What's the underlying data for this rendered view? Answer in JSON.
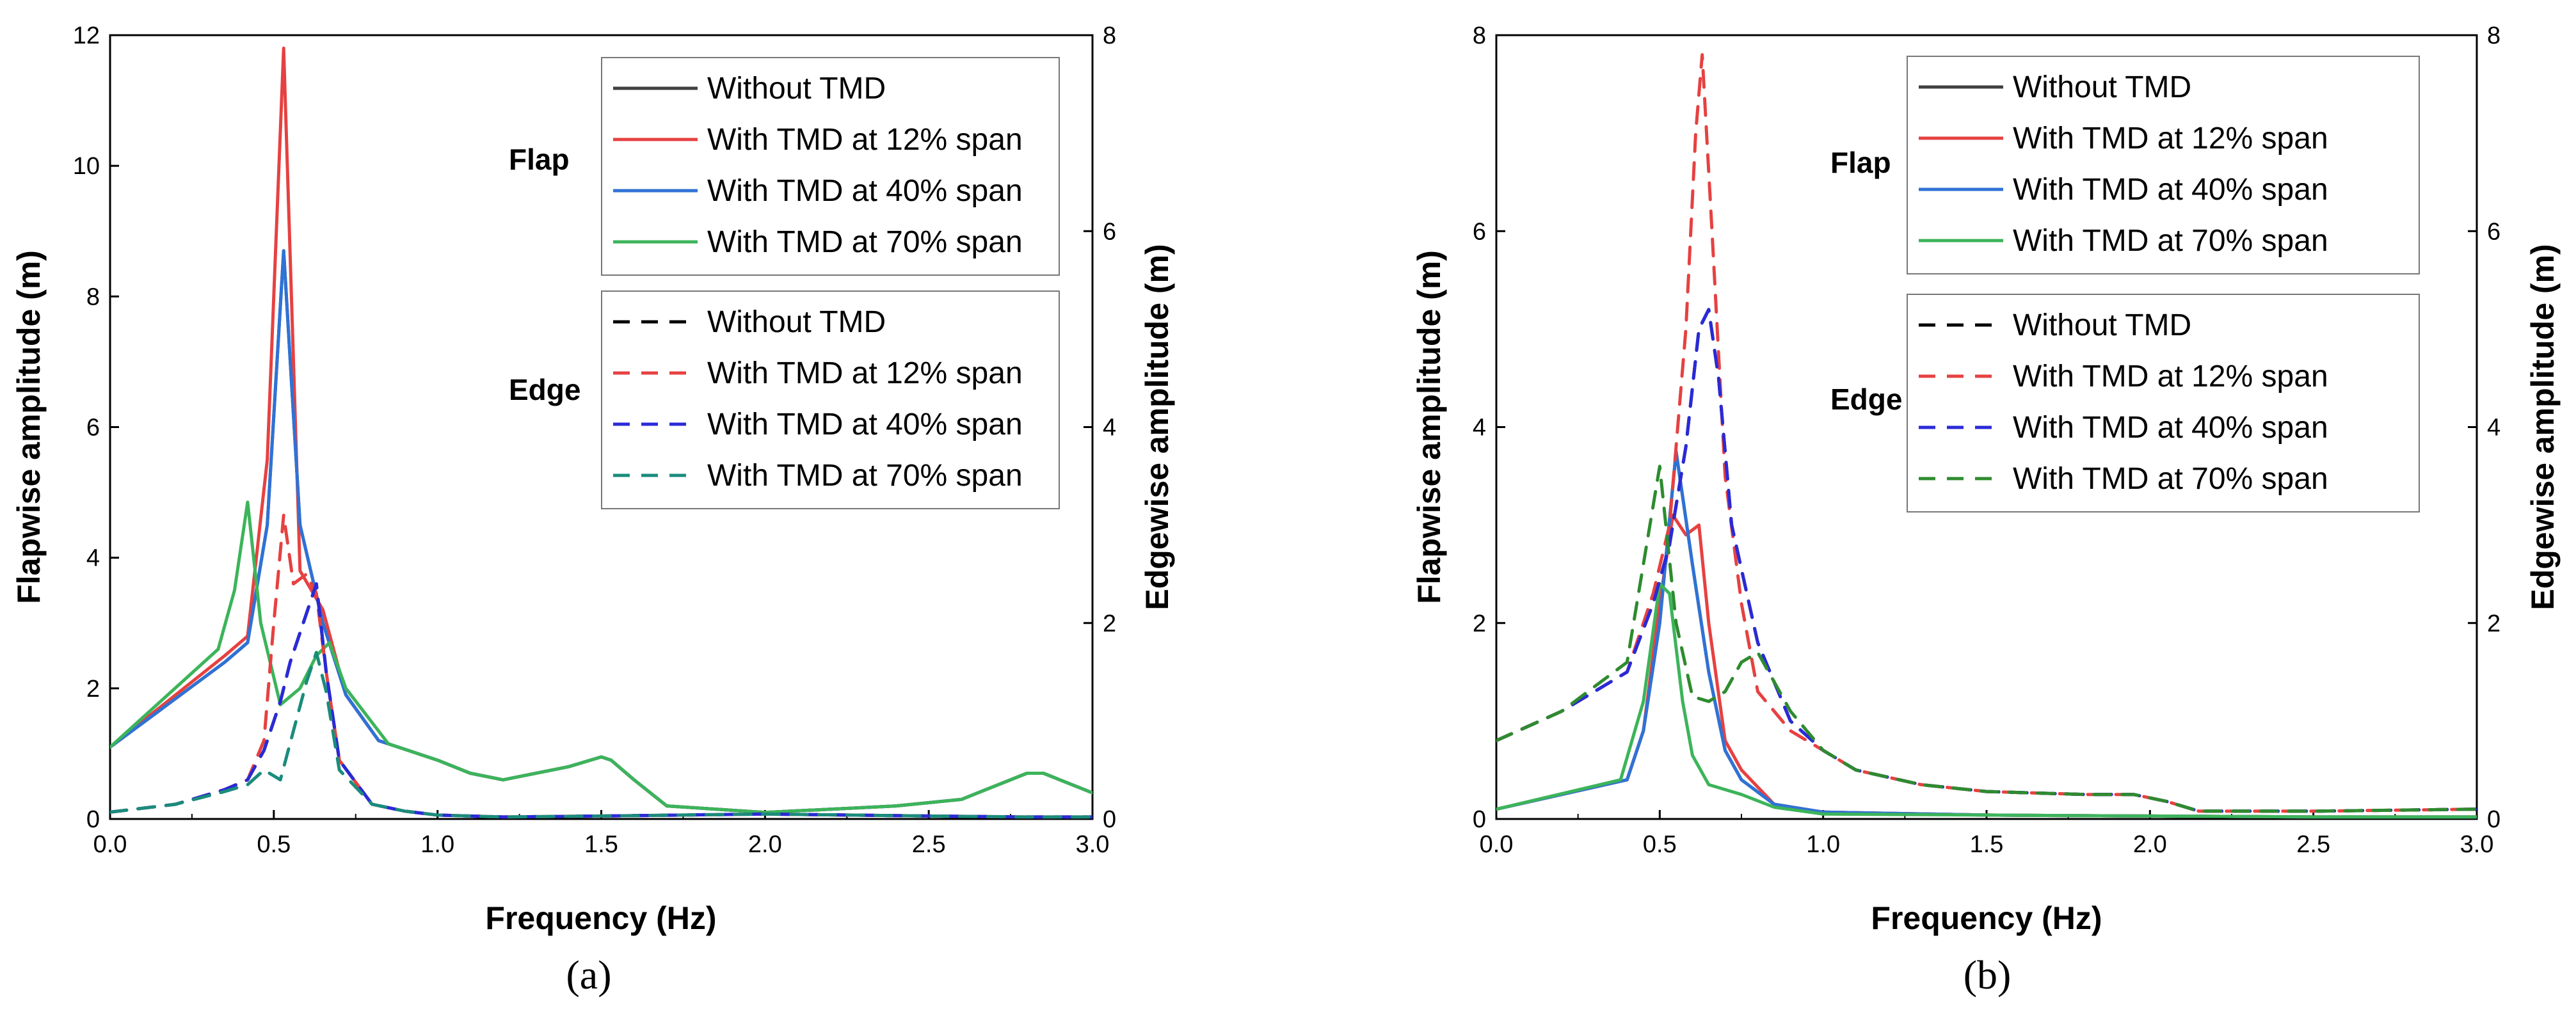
{
  "chart_data": [
    {
      "type": "line",
      "panel_label": "(a)",
      "xlabel": "Frequency (Hz)",
      "ylabel_left": "Flapwise amplitude (m)",
      "ylabel_right": "Edgewise amplitude (m)",
      "xlim": [
        0,
        3.0
      ],
      "ylim_left": [
        0,
        12
      ],
      "ylim_right": [
        0,
        8
      ],
      "x_ticks": [
        "0.0",
        "0.5",
        "1.0",
        "1.5",
        "2.0",
        "2.5",
        "3.0"
      ],
      "y_ticks_left": [
        "0",
        "2",
        "4",
        "6",
        "8",
        "10",
        "12"
      ],
      "y_ticks_right": [
        "0",
        "2",
        "4",
        "6",
        "8"
      ],
      "legend_flap_title": "Flap",
      "legend_edge_title": "Edge",
      "series": [
        {
          "name": "Without TMD",
          "group": "flap",
          "axis": "left",
          "color": "#404040",
          "dash": false,
          "x": [
            0,
            0.35,
            0.42,
            0.48,
            0.53,
            0.58,
            0.65,
            0.72,
            0.82,
            1.0,
            1.1,
            1.2,
            1.4,
            1.5,
            1.53,
            1.6,
            1.7,
            2.0,
            2.4,
            2.6,
            2.8,
            2.85,
            3.0
          ],
          "y": [
            1.1,
            2.4,
            2.7,
            4.5,
            8.7,
            4.5,
            3.0,
            1.9,
            1.2,
            0.9,
            0.7,
            0.6,
            0.8,
            0.95,
            0.9,
            0.6,
            0.2,
            0.1,
            0.2,
            0.3,
            0.7,
            0.7,
            0.4
          ]
        },
        {
          "name": "With TMD at 12% span",
          "group": "flap",
          "axis": "left",
          "color": "#e64141",
          "dash": false,
          "x": [
            0,
            0.35,
            0.42,
            0.48,
            0.53,
            0.58,
            0.65,
            0.72,
            0.82,
            1.0,
            1.1,
            1.2,
            1.4,
            1.5,
            1.53,
            1.6,
            1.7,
            2.0,
            2.4,
            2.6,
            2.8,
            2.85,
            3.0
          ],
          "y": [
            1.1,
            2.5,
            2.8,
            5.5,
            11.8,
            3.8,
            3.2,
            1.9,
            1.2,
            0.9,
            0.7,
            0.6,
            0.8,
            0.95,
            0.9,
            0.6,
            0.2,
            0.1,
            0.2,
            0.3,
            0.7,
            0.7,
            0.4
          ]
        },
        {
          "name": "With TMD at 40% span",
          "group": "flap",
          "axis": "left",
          "color": "#2f72d6",
          "dash": false,
          "x": [
            0,
            0.35,
            0.42,
            0.48,
            0.53,
            0.58,
            0.65,
            0.72,
            0.82,
            1.0,
            1.1,
            1.2,
            1.4,
            1.5,
            1.53,
            1.6,
            1.7,
            2.0,
            2.4,
            2.6,
            2.8,
            2.85,
            3.0
          ],
          "y": [
            1.1,
            2.4,
            2.7,
            4.5,
            8.7,
            4.5,
            3.0,
            1.9,
            1.2,
            0.9,
            0.7,
            0.6,
            0.8,
            0.95,
            0.9,
            0.6,
            0.2,
            0.1,
            0.2,
            0.3,
            0.7,
            0.7,
            0.4
          ]
        },
        {
          "name": "With TMD at 70% span",
          "group": "flap",
          "axis": "left",
          "color": "#3cb45a",
          "dash": false,
          "x": [
            0,
            0.33,
            0.38,
            0.42,
            0.46,
            0.52,
            0.58,
            0.63,
            0.67,
            0.72,
            0.85,
            1.0,
            1.1,
            1.2,
            1.4,
            1.5,
            1.53,
            1.6,
            1.7,
            2.0,
            2.4,
            2.6,
            2.8,
            2.85,
            3.0
          ],
          "y": [
            1.1,
            2.6,
            3.5,
            4.85,
            3.0,
            1.75,
            2.0,
            2.5,
            2.7,
            2.0,
            1.15,
            0.9,
            0.7,
            0.6,
            0.8,
            0.95,
            0.9,
            0.6,
            0.2,
            0.1,
            0.2,
            0.3,
            0.7,
            0.7,
            0.4
          ]
        },
        {
          "name": "Without TMD",
          "group": "edge",
          "axis": "right",
          "color": "#000000",
          "dash": true,
          "x": [
            0,
            0.2,
            0.35,
            0.42,
            0.47,
            0.52,
            0.55,
            0.6,
            0.63,
            0.66,
            0.7,
            0.8,
            0.9,
            1.0,
            1.2,
            1.5,
            2.0,
            2.5,
            2.8,
            3.0
          ],
          "y": [
            0.07,
            0.15,
            0.3,
            0.4,
            0.7,
            1.2,
            1.6,
            2.1,
            2.4,
            1.5,
            0.6,
            0.15,
            0.08,
            0.04,
            0.02,
            0.03,
            0.05,
            0.03,
            0.02,
            0.02
          ]
        },
        {
          "name": "With TMD at 12% span",
          "group": "edge",
          "axis": "right",
          "color": "#e64141",
          "dash": true,
          "x": [
            0,
            0.2,
            0.35,
            0.42,
            0.47,
            0.5,
            0.53,
            0.56,
            0.6,
            0.63,
            0.66,
            0.7,
            0.8,
            0.9,
            1.0,
            1.2,
            1.5,
            2.0,
            2.5,
            2.8,
            3.0
          ],
          "y": [
            0.07,
            0.15,
            0.3,
            0.4,
            0.8,
            2.0,
            3.1,
            2.4,
            2.5,
            2.3,
            1.5,
            0.6,
            0.15,
            0.08,
            0.04,
            0.02,
            0.03,
            0.05,
            0.03,
            0.02,
            0.02
          ]
        },
        {
          "name": "With TMD at 40% span",
          "group": "edge",
          "axis": "right",
          "color": "#2a2ad8",
          "dash": true,
          "x": [
            0,
            0.2,
            0.35,
            0.42,
            0.47,
            0.52,
            0.55,
            0.6,
            0.63,
            0.66,
            0.7,
            0.8,
            0.9,
            1.0,
            1.2,
            1.5,
            2.0,
            2.5,
            2.8,
            3.0
          ],
          "y": [
            0.07,
            0.15,
            0.3,
            0.4,
            0.7,
            1.2,
            1.6,
            2.1,
            2.4,
            1.5,
            0.6,
            0.15,
            0.08,
            0.04,
            0.02,
            0.03,
            0.05,
            0.03,
            0.02,
            0.02
          ]
        },
        {
          "name": "With TMD at 70% span",
          "group": "edge",
          "axis": "right",
          "color": "#1a8c7c",
          "dash": true,
          "x": [
            0,
            0.2,
            0.35,
            0.42,
            0.47,
            0.52,
            0.56,
            0.6,
            0.63,
            0.66,
            0.7,
            0.8,
            0.9,
            1.0,
            1.2,
            1.5,
            2.0,
            2.5,
            2.8,
            3.0
          ],
          "y": [
            0.07,
            0.15,
            0.28,
            0.35,
            0.5,
            0.4,
            0.9,
            1.4,
            1.7,
            1.3,
            0.5,
            0.15,
            0.08,
            0.04,
            0.02,
            0.03,
            0.05,
            0.03,
            0.02,
            0.02
          ]
        }
      ]
    },
    {
      "type": "line",
      "panel_label": "(b)",
      "xlabel": "Frequency (Hz)",
      "ylabel_left": "Flapwise amplitude (m)",
      "ylabel_right": "Edgewise amplitude (m)",
      "xlim": [
        0,
        3.0
      ],
      "ylim_left": [
        0,
        8
      ],
      "ylim_right": [
        0,
        8
      ],
      "x_ticks": [
        "0.0",
        "0.5",
        "1.0",
        "1.5",
        "2.0",
        "2.5",
        "3.0"
      ],
      "y_ticks_left": [
        "0",
        "2",
        "4",
        "6",
        "8"
      ],
      "y_ticks_right": [
        "0",
        "2",
        "4",
        "6",
        "8"
      ],
      "legend_flap_title": "Flap",
      "legend_edge_title": "Edge",
      "series": [
        {
          "name": "Without TMD",
          "group": "flap",
          "axis": "left",
          "color": "#404040",
          "dash": false,
          "x": [
            0,
            0.4,
            0.45,
            0.5,
            0.55,
            0.6,
            0.65,
            0.7,
            0.75,
            0.85,
            1.0,
            1.5,
            2.0,
            2.5,
            3.0
          ],
          "y": [
            0.1,
            0.4,
            0.9,
            2.0,
            3.75,
            2.6,
            1.5,
            0.7,
            0.4,
            0.15,
            0.07,
            0.04,
            0.03,
            0.02,
            0.02
          ]
        },
        {
          "name": "With TMD at 12% span",
          "group": "flap",
          "axis": "left",
          "color": "#e64141",
          "dash": false,
          "x": [
            0,
            0.4,
            0.45,
            0.5,
            0.54,
            0.58,
            0.62,
            0.65,
            0.7,
            0.75,
            0.85,
            1.0,
            1.5,
            2.0,
            2.5,
            3.0
          ],
          "y": [
            0.1,
            0.4,
            0.9,
            2.2,
            3.1,
            2.9,
            3.0,
            2.0,
            0.8,
            0.5,
            0.15,
            0.07,
            0.04,
            0.03,
            0.02,
            0.02
          ]
        },
        {
          "name": "With TMD at 40% span",
          "group": "flap",
          "axis": "left",
          "color": "#2f72d6",
          "dash": false,
          "x": [
            0,
            0.4,
            0.45,
            0.5,
            0.55,
            0.6,
            0.65,
            0.7,
            0.75,
            0.85,
            1.0,
            1.5,
            2.0,
            2.5,
            3.0
          ],
          "y": [
            0.1,
            0.4,
            0.9,
            2.0,
            3.75,
            2.6,
            1.5,
            0.7,
            0.4,
            0.15,
            0.07,
            0.04,
            0.03,
            0.02,
            0.02
          ]
        },
        {
          "name": "With TMD at 70% span",
          "group": "flap",
          "axis": "left",
          "color": "#3cb45a",
          "dash": false,
          "x": [
            0,
            0.38,
            0.45,
            0.5,
            0.53,
            0.57,
            0.6,
            0.65,
            0.75,
            0.85,
            1.0,
            1.5,
            2.0,
            2.5,
            3.0
          ],
          "y": [
            0.1,
            0.4,
            1.2,
            2.4,
            2.3,
            1.2,
            0.65,
            0.35,
            0.25,
            0.12,
            0.05,
            0.04,
            0.03,
            0.02,
            0.02
          ]
        },
        {
          "name": "Without TMD",
          "group": "edge",
          "axis": "right",
          "color": "#000000",
          "dash": true,
          "x": [
            0,
            0.2,
            0.4,
            0.48,
            0.53,
            0.58,
            0.62,
            0.65,
            0.68,
            0.72,
            0.8,
            0.9,
            1.0,
            1.1,
            1.3,
            1.5,
            1.8,
            1.95,
            2.05,
            2.15,
            2.5,
            3.0
          ],
          "y": [
            0.8,
            1.1,
            1.5,
            2.2,
            2.8,
            3.8,
            5.0,
            5.2,
            4.5,
            3.0,
            1.8,
            1.0,
            0.7,
            0.5,
            0.35,
            0.28,
            0.25,
            0.25,
            0.18,
            0.08,
            0.08,
            0.1
          ]
        },
        {
          "name": "With TMD at 12% span",
          "group": "edge",
          "axis": "right",
          "color": "#e64141",
          "dash": true,
          "x": [
            0,
            0.2,
            0.4,
            0.48,
            0.53,
            0.58,
            0.61,
            0.63,
            0.66,
            0.7,
            0.75,
            0.8,
            0.9,
            1.0,
            1.1,
            1.3,
            1.5,
            1.8,
            1.95,
            2.05,
            2.15,
            2.5,
            3.0
          ],
          "y": [
            0.8,
            1.1,
            1.5,
            2.3,
            3.0,
            5.0,
            7.0,
            7.8,
            6.0,
            3.5,
            2.2,
            1.3,
            0.9,
            0.7,
            0.5,
            0.35,
            0.28,
            0.25,
            0.25,
            0.18,
            0.08,
            0.08,
            0.1
          ]
        },
        {
          "name": "With TMD at 40% span",
          "group": "edge",
          "axis": "right",
          "color": "#2a2ad8",
          "dash": true,
          "x": [
            0,
            0.2,
            0.4,
            0.48,
            0.53,
            0.58,
            0.62,
            0.65,
            0.68,
            0.72,
            0.8,
            0.9,
            1.0,
            1.1,
            1.3,
            1.5,
            1.8,
            1.95,
            2.05,
            2.15,
            2.5,
            3.0
          ],
          "y": [
            0.8,
            1.1,
            1.5,
            2.2,
            2.8,
            3.8,
            5.0,
            5.2,
            4.5,
            3.0,
            1.8,
            1.0,
            0.7,
            0.5,
            0.35,
            0.28,
            0.25,
            0.25,
            0.18,
            0.08,
            0.08,
            0.1
          ]
        },
        {
          "name": "With TMD at 70% span",
          "group": "edge",
          "axis": "right",
          "color": "#2e8b2e",
          "dash": true,
          "x": [
            0,
            0.2,
            0.4,
            0.46,
            0.5,
            0.55,
            0.6,
            0.65,
            0.7,
            0.75,
            0.8,
            0.85,
            0.9,
            1.0,
            1.1,
            1.3,
            1.5,
            1.8,
            1.95,
            2.05,
            2.15,
            2.5,
            3.0
          ],
          "y": [
            0.8,
            1.1,
            1.6,
            2.8,
            3.6,
            2.0,
            1.25,
            1.2,
            1.3,
            1.6,
            1.7,
            1.4,
            1.1,
            0.7,
            0.5,
            0.35,
            0.28,
            0.25,
            0.25,
            0.18,
            0.08,
            0.08,
            0.1
          ]
        }
      ]
    }
  ]
}
